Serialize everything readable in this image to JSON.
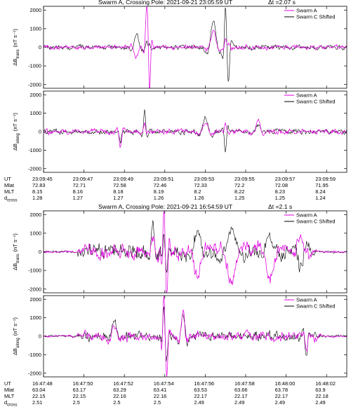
{
  "series_legend": [
    "Swarm A",
    "Swarm C Shifted"
  ],
  "colors": {
    "swarm_a": "#e000e0",
    "swarm_c": "#000000"
  },
  "row_labels": [
    "UT",
    "Mlat",
    "MLT",
    "d",
    "cross"
  ],
  "events": [
    {
      "title": "Swarm A, Crossing Pole: 2021-09-21    23:05:59 UT",
      "dt": "Δt =2.07 s",
      "ut": [
        "23:09:45",
        "23:09:47",
        "23:09:49",
        "23:09:51",
        "23:09:53",
        "23:09:55",
        "23:09:57",
        "23:09:59"
      ],
      "mlat": [
        "72.83",
        "72.71",
        "72.58",
        "72.46",
        "72.33",
        "72.2",
        "72.08",
        "71.95"
      ],
      "mlt": [
        "8.15",
        "8.16",
        "8.18",
        "8.19",
        "8.2",
        "8.22",
        "8.23",
        "8.24"
      ],
      "dcross": [
        "1.28",
        "1.27",
        "1.27",
        "1.26",
        "1.26",
        "1.25",
        "1.25",
        "1.24"
      ]
    },
    {
      "title": "Swarm A, Crossing Pole: 2021-09-21    16:54:59 UT",
      "dt": "Δt =2.1 s",
      "ut": [
        "16:47:48",
        "16:47:50",
        "16:47:52",
        "16:47:54",
        "16:47:56",
        "16:47:58",
        "16:48:00",
        "16:48:02"
      ],
      "mlat": [
        "63.04",
        "63.17",
        "63.29",
        "63.41",
        "63.53",
        "63.66",
        "63.78",
        "63.9"
      ],
      "mlt": [
        "22.15",
        "22.15",
        "22.16",
        "22.16",
        "22.17",
        "22.17",
        "22.17",
        "22.18"
      ],
      "dcross": [
        "2.51",
        "2.5",
        "2.5",
        "2.5",
        "2.49",
        "2.49",
        "2.49",
        "2.49"
      ]
    }
  ],
  "chart_data": [
    {
      "type": "line",
      "event": 1,
      "component": "trans",
      "ylabel": "ΔB",
      "ylabel_sub": "trans",
      "yunit": "(nT s⁻¹)",
      "ylim": [
        -2200,
        2200
      ],
      "yticks": [
        -2000,
        -1000,
        0,
        1000,
        2000
      ],
      "xlim": [
        0,
        15
      ],
      "x_ticks_s": [
        0,
        2,
        4,
        6,
        8,
        10,
        12,
        14
      ],
      "bursts": [
        {
          "t": 5.1,
          "a": 2050,
          "c": 300,
          "w": 0.14
        },
        {
          "t": 5.25,
          "a": -2050,
          "c": 200,
          "w": 0.1
        },
        {
          "t": 8.4,
          "a": 800,
          "c": 1400,
          "w": 0.3
        },
        {
          "t": 9.0,
          "a": 600,
          "c": 1900,
          "w": 0.12
        },
        {
          "t": 9.15,
          "a": 300,
          "c": -1400,
          "w": 0.14
        },
        {
          "t": 4.6,
          "a": -500,
          "c": 700,
          "w": 0.25
        }
      ],
      "base_a": 220,
      "base_c": 220,
      "series": [
        {
          "name": "Swarm A"
        },
        {
          "name": "Swarm C Shifted"
        }
      ]
    },
    {
      "type": "line",
      "event": 1,
      "component": "along",
      "ylabel": "ΔB",
      "ylabel_sub": "along",
      "yunit": "(nT s⁻¹)",
      "ylim": [
        -2200,
        2200
      ],
      "yticks": [
        -2000,
        -1000,
        0,
        1000,
        2000
      ],
      "xlim": [
        0,
        15
      ],
      "x_ticks_s": [
        0,
        2,
        4,
        6,
        8,
        10,
        12,
        14
      ],
      "bursts": [
        {
          "t": 5.0,
          "a": 500,
          "c": 1150,
          "w": 0.12
        },
        {
          "t": 3.8,
          "a": -850,
          "c": -500,
          "w": 0.15
        },
        {
          "t": 9.0,
          "a": 400,
          "c": -1150,
          "w": 0.12
        },
        {
          "t": 8.0,
          "a": 500,
          "c": 700,
          "w": 0.3
        },
        {
          "t": 10.6,
          "a": 600,
          "c": 400,
          "w": 0.25
        }
      ],
      "base_a": 260,
      "base_c": 250,
      "series": [
        {
          "name": "Swarm A"
        },
        {
          "name": "Swarm C Shifted"
        }
      ]
    },
    {
      "type": "line",
      "event": 2,
      "component": "trans",
      "ylabel": "ΔB",
      "ylabel_sub": "trans",
      "yunit": "(nT s⁻¹)",
      "ylim": [
        -2200,
        2200
      ],
      "yticks": [
        -2000,
        -1000,
        0,
        1000,
        2000
      ],
      "xlim": [
        0,
        15
      ],
      "x_ticks_s": [
        0,
        2,
        4,
        6,
        8,
        10,
        12,
        14
      ],
      "bursts": [
        {
          "t": 5.95,
          "a": 2200,
          "c": 900,
          "w": 0.1
        },
        {
          "t": 6.1,
          "a": -2100,
          "c": -900,
          "w": 0.12
        },
        {
          "t": 5.4,
          "a": 800,
          "c": 1500,
          "w": 0.2
        },
        {
          "t": 7.6,
          "a": -1400,
          "c": 1000,
          "w": 0.4
        },
        {
          "t": 9.3,
          "a": -1600,
          "c": 1000,
          "w": 0.5
        },
        {
          "t": 11.2,
          "a": -1200,
          "c": 1000,
          "w": 0.5
        },
        {
          "t": 12.7,
          "a": 800,
          "c": -800,
          "w": 0.3
        }
      ],
      "active": [
        2.0,
        13.2
      ],
      "base_a": 700,
      "base_c": 750,
      "series": [
        {
          "name": "Swarm A"
        },
        {
          "name": "Swarm C Shifted"
        }
      ]
    },
    {
      "type": "line",
      "event": 2,
      "component": "along",
      "ylabel": "ΔB",
      "ylabel_sub": "along",
      "yunit": "(nT s⁻¹)",
      "ylim": [
        -2200,
        2200
      ],
      "yticks": [
        -2000,
        -1000,
        0,
        1000,
        2000
      ],
      "xlim": [
        0,
        15
      ],
      "x_ticks_s": [
        0,
        2,
        4,
        6,
        8,
        10,
        12,
        14
      ],
      "bursts": [
        {
          "t": 5.95,
          "a": 2000,
          "c": 1500,
          "w": 0.1
        },
        {
          "t": 6.1,
          "a": -2100,
          "c": -900,
          "w": 0.12
        },
        {
          "t": 6.9,
          "a": 1400,
          "c": 1400,
          "w": 0.2
        },
        {
          "t": 13.0,
          "a": -800,
          "c": -1000,
          "w": 0.15
        },
        {
          "t": 3.5,
          "a": 500,
          "c": 800,
          "w": 0.3
        }
      ],
      "active": [
        2.0,
        13.5
      ],
      "base_a": 450,
      "base_c": 450,
      "series": [
        {
          "name": "Swarm A"
        },
        {
          "name": "Swarm C Shifted"
        }
      ]
    }
  ]
}
